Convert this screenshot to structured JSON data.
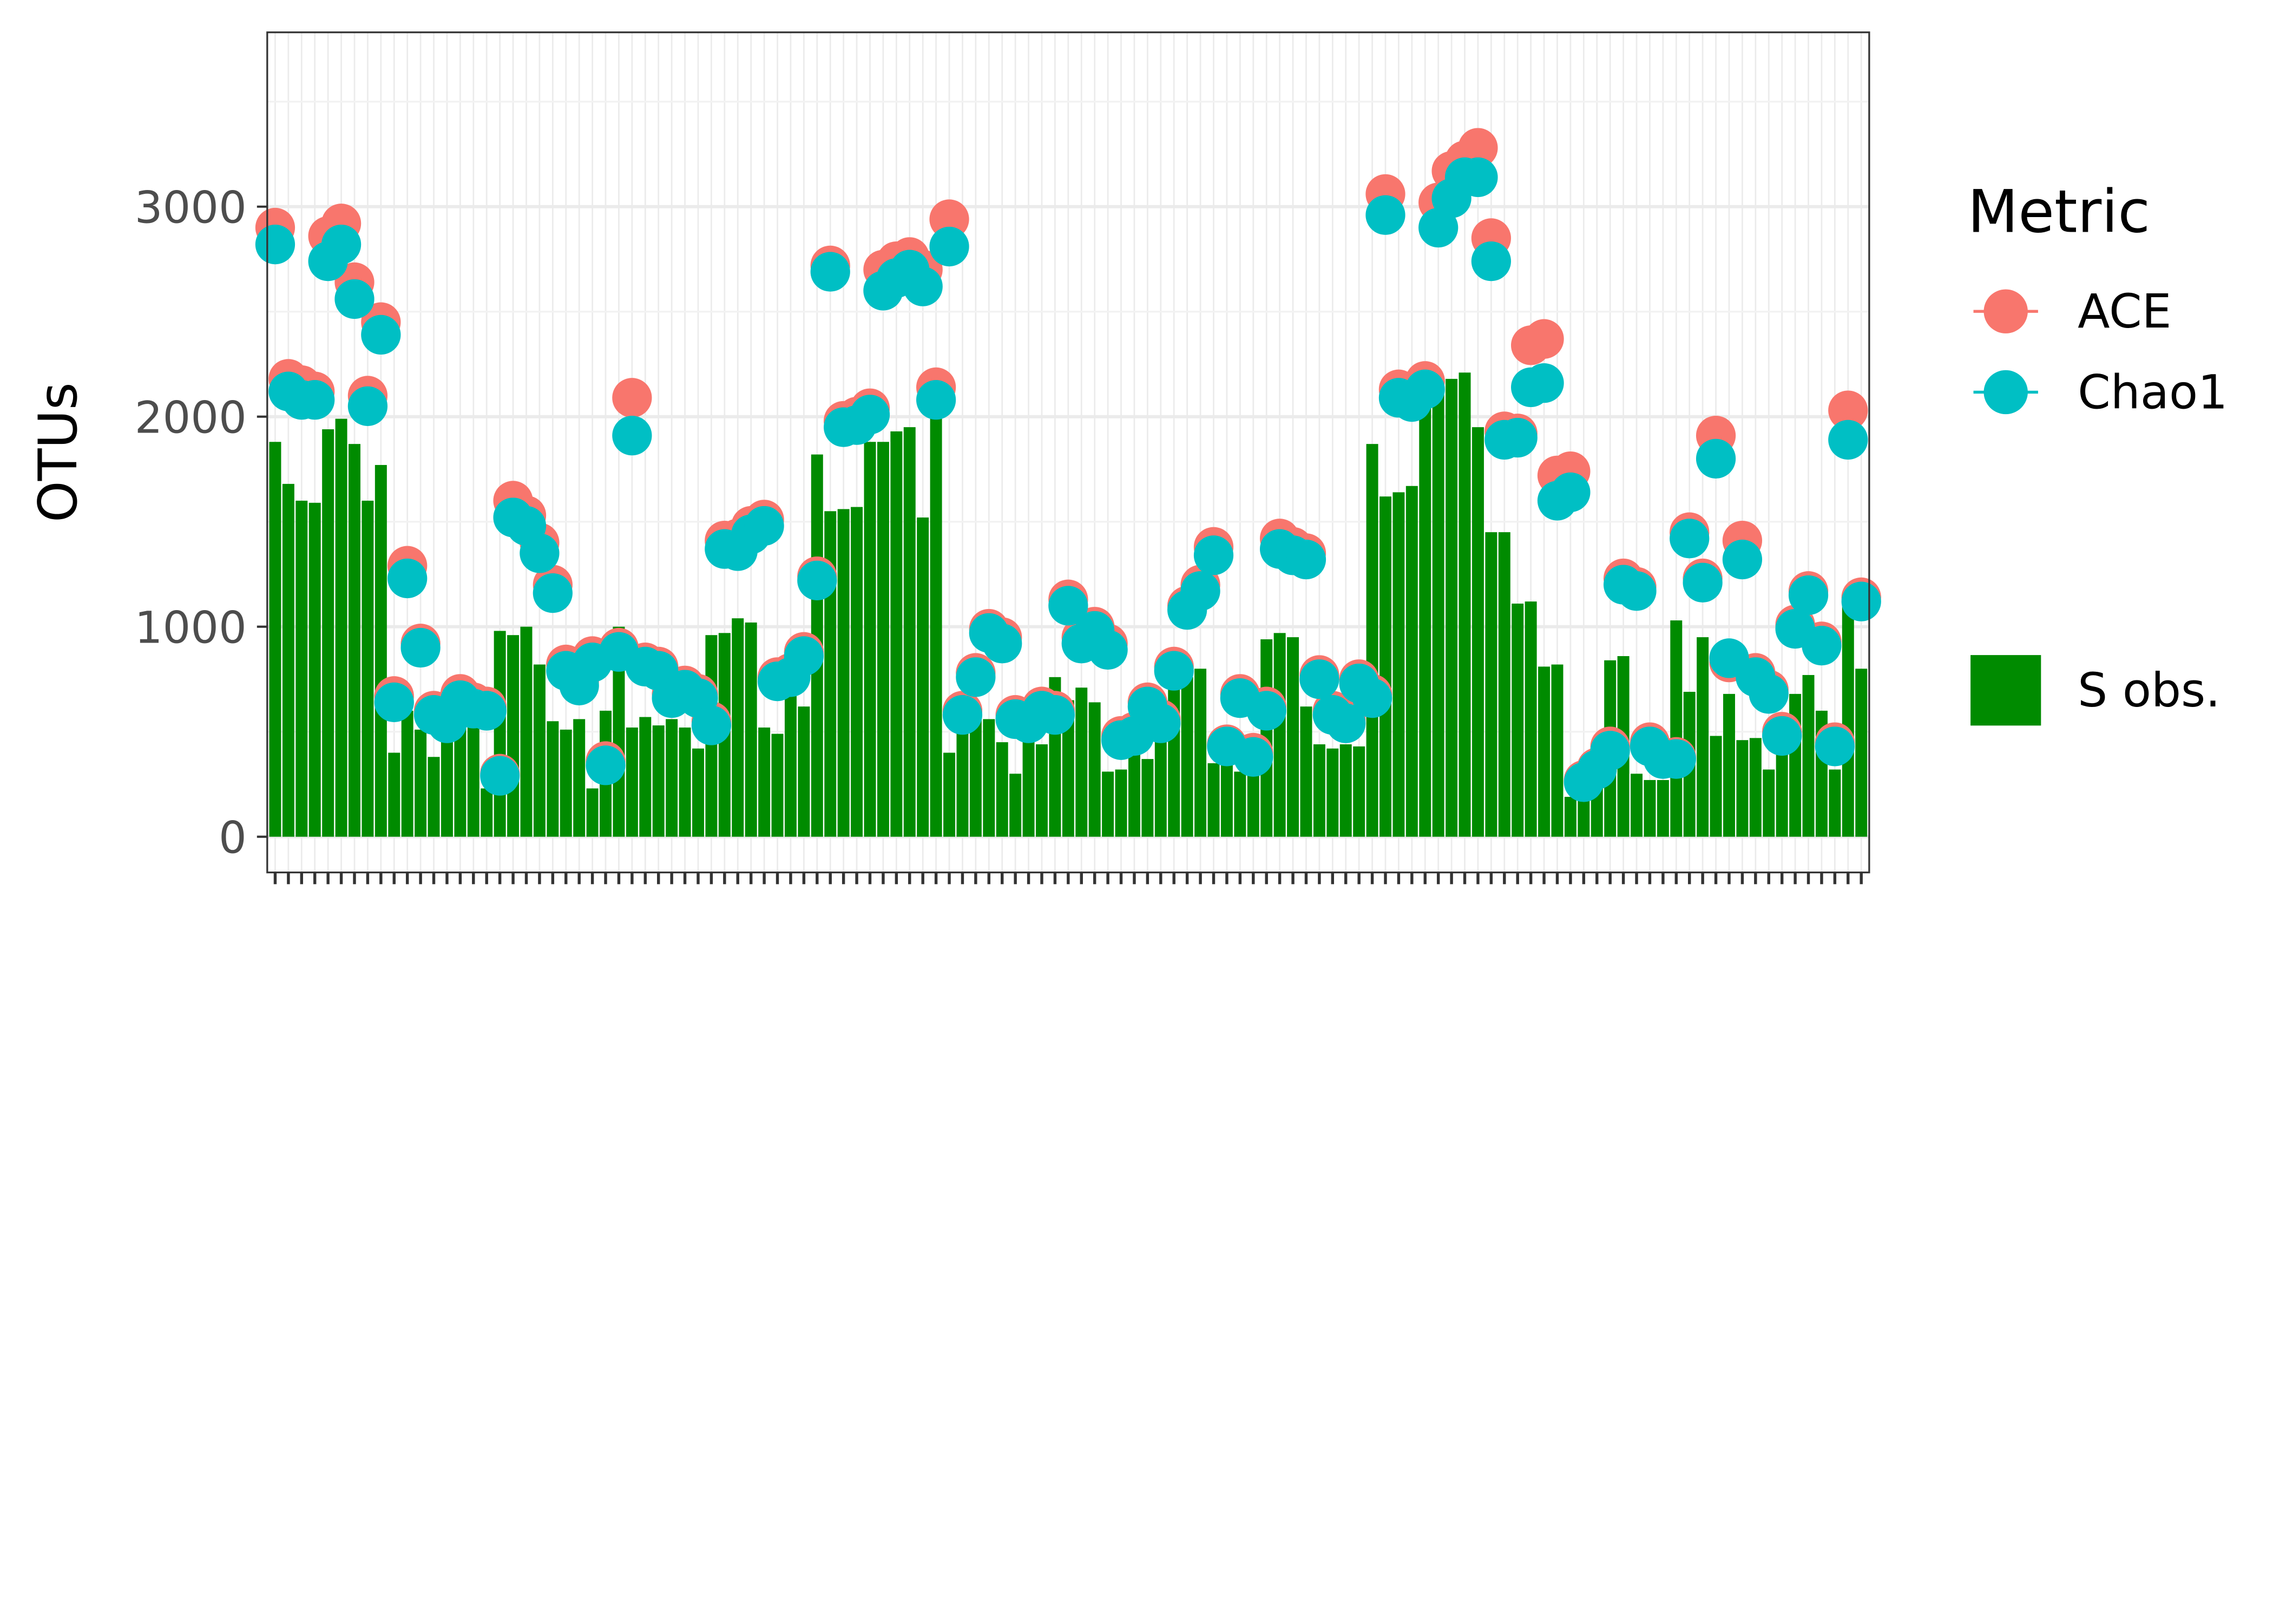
{
  "chart_data": {
    "type": "bar",
    "y_label": "OTUs",
    "legend_title": "Metric",
    "grid": true,
    "ylim": [
      -170,
      3830
    ],
    "yticks": [
      0,
      1000,
      2000,
      3000
    ],
    "categories": [
      null,
      null,
      null,
      null,
      null,
      null,
      null,
      null,
      null,
      null,
      null,
      null,
      null,
      null,
      null,
      null,
      null,
      null,
      null,
      null,
      null,
      null,
      null,
      null,
      null,
      null,
      null,
      null,
      null,
      null,
      null,
      null,
      null,
      null,
      null,
      null,
      null,
      null,
      null,
      null,
      null,
      null,
      null,
      null,
      null,
      null,
      null,
      null,
      null,
      null,
      null,
      null,
      null,
      null,
      null,
      null,
      null,
      null,
      null,
      null,
      null,
      null,
      null,
      null,
      null,
      null,
      null,
      null,
      null,
      null,
      null,
      null,
      null,
      null,
      null,
      null,
      null,
      null,
      null,
      null,
      null,
      null,
      null,
      null,
      null,
      null,
      null,
      null,
      null,
      null,
      null,
      null,
      null,
      null,
      null,
      null,
      null,
      null,
      null,
      null,
      null,
      null,
      null,
      null,
      null,
      null,
      null,
      null,
      null,
      null,
      null,
      null,
      null,
      null,
      null,
      null,
      null,
      null,
      null,
      null,
      null
    ],
    "series": [
      {
        "name": "S obs.",
        "type": "bar",
        "color": "#008b00",
        "values": [
          1880,
          1680,
          1600,
          1590,
          1940,
          1990,
          1870,
          1600,
          1770,
          400,
          600,
          510,
          380,
          480,
          540,
          520,
          230,
          980,
          960,
          1000,
          820,
          550,
          510,
          560,
          230,
          600,
          1000,
          520,
          570,
          530,
          560,
          520,
          420,
          960,
          970,
          1040,
          1020,
          520,
          490,
          790,
          620,
          1820,
          1550,
          1560,
          1570,
          1880,
          1880,
          1930,
          1950,
          1520,
          2000,
          400,
          500,
          600,
          560,
          450,
          300,
          470,
          440,
          760,
          650,
          710,
          640,
          310,
          320,
          400,
          370,
          570,
          700,
          760,
          800,
          350,
          530,
          310,
          420,
          940,
          970,
          950,
          620,
          440,
          420,
          440,
          430,
          1870,
          1620,
          1640,
          1670,
          2050,
          2150,
          2180,
          2210,
          1950,
          1450,
          1450,
          1110,
          1120,
          810,
          820,
          190,
          220,
          240,
          840,
          860,
          300,
          270,
          270,
          1030,
          690,
          950,
          480,
          680,
          460,
          470,
          320,
          400,
          680,
          770,
          600,
          320,
          1160,
          800
        ]
      },
      {
        "name": "ACE",
        "type": "scatter",
        "color": "#f8766d",
        "values": [
          2900,
          2180,
          2150,
          2120,
          2860,
          2920,
          2640,
          2100,
          2450,
          670,
          1290,
          920,
          600,
          560,
          680,
          640,
          620,
          300,
          1600,
          1530,
          1400,
          1200,
          820,
          740,
          860,
          360,
          900,
          2090,
          830,
          810,
          680,
          720,
          680,
          550,
          1410,
          1420,
          1480,
          1510,
          760,
          780,
          880,
          1240,
          2720,
          1980,
          2000,
          2040,
          2700,
          2740,
          2760,
          2700,
          2140,
          2940,
          600,
          780,
          990,
          950,
          580,
          560,
          620,
          600,
          1130,
          950,
          1000,
          920,
          480,
          500,
          640,
          560,
          810,
          1100,
          1200,
          1380,
          440,
          680,
          400,
          620,
          1420,
          1380,
          1350,
          770,
          600,
          560,
          750,
          680,
          3060,
          2130,
          2110,
          2170,
          3020,
          3170,
          3220,
          3280,
          2850,
          1930,
          1920,
          2340,
          2370,
          1720,
          1740,
          270,
          330,
          430,
          1230,
          1190,
          450,
          380,
          380,
          1450,
          1230,
          1910,
          830,
          1410,
          780,
          700,
          500,
          1010,
          1170,
          930,
          450,
          2030,
          1140
        ]
      },
      {
        "name": "Chao1",
        "type": "scatter",
        "color": "#00bfc4",
        "values": [
          2820,
          2120,
          2080,
          2080,
          2740,
          2820,
          2560,
          2050,
          2390,
          640,
          1230,
          900,
          580,
          540,
          650,
          610,
          600,
          290,
          1520,
          1480,
          1350,
          1160,
          790,
          720,
          830,
          340,
          880,
          1910,
          810,
          790,
          660,
          700,
          660,
          530,
          1370,
          1360,
          1440,
          1480,
          740,
          760,
          860,
          1220,
          2690,
          1950,
          1960,
          2010,
          2600,
          2660,
          2700,
          2620,
          2080,
          2810,
          580,
          760,
          970,
          920,
          560,
          540,
          600,
          580,
          1100,
          920,
          980,
          890,
          460,
          480,
          620,
          540,
          790,
          1080,
          1170,
          1340,
          430,
          660,
          380,
          600,
          1370,
          1340,
          1320,
          750,
          580,
          540,
          730,
          660,
          2960,
          2090,
          2070,
          2130,
          2900,
          3040,
          3140,
          3140,
          2740,
          1890,
          1900,
          2140,
          2160,
          1600,
          1640,
          260,
          320,
          410,
          1200,
          1170,
          430,
          370,
          370,
          1420,
          1210,
          1800,
          850,
          1320,
          760,
          680,
          480,
          990,
          1150,
          910,
          430,
          1890,
          1120
        ]
      }
    ]
  }
}
